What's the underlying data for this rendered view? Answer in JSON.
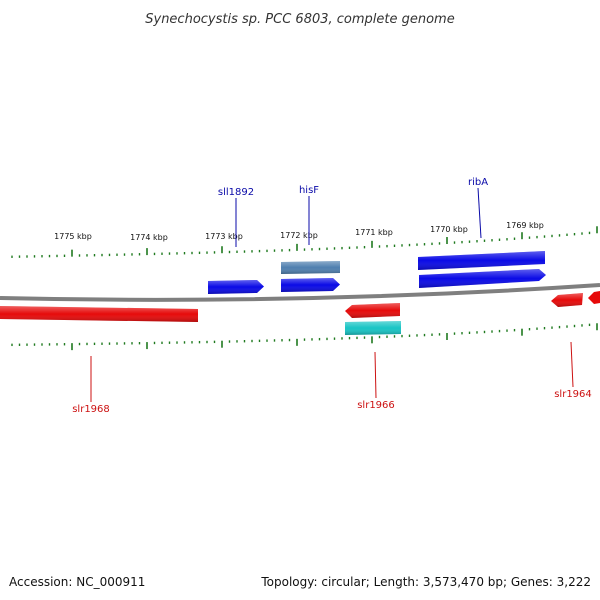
{
  "title": "Synechocystis sp. PCC 6803, complete genome",
  "footer": {
    "accession": "Accession: NC_000911",
    "summary": "Topology: circular; Length: 3,573,470 bp; Genes: 3,222"
  },
  "colors": {
    "backbone": "#7f7f7f",
    "tick": "#1f7a1f",
    "gene_forward": "#0a0ae6",
    "gene_forward_alt": "#4f7faf",
    "gene_reverse": "#e60a0a",
    "gene_reverse_alt": "#17c4c4",
    "label_forward": "#0a0aa8",
    "label_reverse": "#cc1111"
  },
  "scale": {
    "unit": "kbp",
    "tick_labels": [
      "1775 kbp",
      "1774 kbp",
      "1773 kbp",
      "1772 kbp",
      "1771 kbp",
      "1770 kbp",
      "1769 kbp"
    ]
  },
  "genes": [
    {
      "label": "sll1892",
      "strand": "forward",
      "row": 1,
      "color": "gene_forward"
    },
    {
      "label": "hisF",
      "strand": "forward",
      "row": 1,
      "color": "gene_forward"
    },
    {
      "label": "",
      "strand": "forward",
      "row": 2,
      "color": "gene_forward_alt"
    },
    {
      "label": "ribA",
      "strand": "forward",
      "row": 1,
      "color": "gene_forward"
    },
    {
      "label": "",
      "strand": "forward",
      "row": 2,
      "color": "gene_forward"
    },
    {
      "label": "slr1968",
      "strand": "reverse",
      "row": 1,
      "color": "gene_reverse"
    },
    {
      "label": "slr1966",
      "strand": "reverse",
      "row": 1,
      "color": "gene_reverse"
    },
    {
      "label": "",
      "strand": "reverse",
      "row": 2,
      "color": "gene_reverse_alt"
    },
    {
      "label": "slr1964",
      "strand": "reverse",
      "row": 1,
      "color": "gene_reverse"
    },
    {
      "label": "",
      "strand": "reverse",
      "row": 1,
      "color": "gene_reverse"
    }
  ]
}
